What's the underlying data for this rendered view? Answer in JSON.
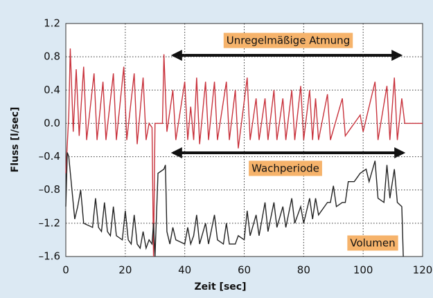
{
  "chart_data": {
    "type": "line",
    "ylabel": "Fluss [l/sec]",
    "xlabel": "Zeit [sec]",
    "annotations": [
      "Unregelmäßige Atmung",
      "Wachperiode",
      "Volumen"
    ],
    "xlim": [
      0,
      120
    ],
    "xticks": [
      0,
      20,
      40,
      60,
      80,
      100,
      120
    ],
    "ylim": [
      -1.6,
      1.2
    ],
    "yticks": [
      {
        "value": -1.6,
        "label": "–1.6"
      },
      {
        "value": -1.2,
        "label": "–1.2"
      },
      {
        "value": -0.8,
        "label": "–0.8"
      },
      {
        "value": -0.4,
        "label": "–0.4"
      },
      {
        "value": 0,
        "label": "0.0"
      },
      0.4,
      0.8,
      1.2
    ],
    "grid": true,
    "series": [
      {
        "color": "#c8323c",
        "x": [
          0,
          1,
          1.5,
          2.5,
          3.5,
          4.5,
          6,
          7,
          9.5,
          10.5,
          12.5,
          13.5,
          16,
          17,
          19.5,
          20.5,
          23,
          24,
          26,
          27,
          28,
          29,
          29.5,
          30,
          32.5,
          33,
          34,
          36,
          37,
          40,
          41,
          42,
          43,
          44,
          45,
          47,
          48,
          50,
          51,
          54,
          55,
          57,
          58,
          61,
          62,
          64,
          65,
          67,
          68,
          70,
          71,
          73,
          74,
          76,
          77,
          79,
          80,
          82,
          83,
          84,
          85,
          88,
          89,
          93,
          94,
          99,
          100,
          104,
          105,
          108,
          109,
          110.5,
          111.5,
          113,
          114,
          120
        ],
        "values": [
          -0.6,
          0.1,
          0.9,
          -0.1,
          0.65,
          -0.15,
          0.68,
          -0.2,
          0.6,
          -0.2,
          0.5,
          -0.2,
          0.6,
          -0.2,
          0.68,
          -0.2,
          0.6,
          -0.25,
          0.55,
          -0.2,
          0,
          -0.05,
          -1.6,
          0,
          0,
          0.83,
          -0.1,
          0.4,
          -0.2,
          0.5,
          -0.2,
          0.2,
          -0.2,
          0.55,
          -0.25,
          0.5,
          -0.2,
          0.5,
          -0.2,
          0.5,
          -0.2,
          0.4,
          -0.3,
          0.55,
          -0.2,
          0.3,
          -0.2,
          0.3,
          -0.2,
          0.4,
          -0.2,
          0.3,
          -0.2,
          0.4,
          -0.2,
          0.45,
          -0.2,
          0.4,
          -0.2,
          0.3,
          -0.2,
          0.35,
          -0.2,
          0.3,
          -0.15,
          0.1,
          -0.1,
          0.5,
          -0.2,
          0.45,
          -0.2,
          0.55,
          -0.2,
          0.3,
          0,
          0
        ]
      },
      {
        "color": "#222222",
        "x": [
          0,
          0.5,
          1,
          3,
          4,
          5,
          6,
          9,
          10,
          11,
          12,
          13,
          14,
          15,
          16,
          17,
          19,
          20,
          21,
          22,
          23,
          24,
          25,
          26,
          27,
          28,
          29,
          29.5,
          30,
          31,
          33,
          33.5,
          34,
          35,
          36,
          37,
          40,
          41,
          42,
          43,
          44,
          45,
          47,
          48,
          50,
          51,
          53,
          54,
          55,
          57,
          58,
          60,
          61,
          62,
          64,
          65,
          67,
          68,
          70,
          71,
          73,
          74,
          76,
          77,
          79,
          80,
          82,
          83,
          84,
          85,
          88,
          89,
          90,
          91,
          93,
          94,
          95,
          97,
          98,
          99,
          101,
          102,
          104,
          105,
          107,
          108,
          109,
          110.5,
          111.5,
          113,
          113.5
        ],
        "values": [
          -1.0,
          -0.35,
          -0.4,
          -1.15,
          -1.0,
          -0.8,
          -1.2,
          -1.25,
          -0.9,
          -1.25,
          -1.3,
          -0.95,
          -1.3,
          -1.35,
          -1.0,
          -1.35,
          -1.4,
          -1.05,
          -1.4,
          -1.45,
          -1.1,
          -1.45,
          -1.5,
          -1.3,
          -1.5,
          -1.4,
          -1.45,
          -1.2,
          -1.6,
          -0.6,
          -0.55,
          -0.5,
          -1.3,
          -1.45,
          -1.25,
          -1.4,
          -1.45,
          -1.25,
          -1.45,
          -1.35,
          -1.1,
          -1.45,
          -1.2,
          -1.45,
          -1.1,
          -1.4,
          -1.45,
          -1.2,
          -1.45,
          -1.45,
          -1.35,
          -1.4,
          -1.05,
          -1.35,
          -1.1,
          -1.35,
          -0.95,
          -1.3,
          -0.95,
          -1.25,
          -1.0,
          -1.25,
          -0.9,
          -1.2,
          -1.0,
          -1.2,
          -0.9,
          -1.15,
          -0.9,
          -1.1,
          -0.95,
          -0.95,
          -0.75,
          -1.0,
          -0.95,
          -0.95,
          -0.7,
          -0.7,
          -0.65,
          -0.6,
          -0.55,
          -0.7,
          -0.45,
          -0.9,
          -0.95,
          -0.5,
          -0.9,
          -0.55,
          -0.95,
          -1.0,
          -1.6
        ]
      }
    ]
  }
}
